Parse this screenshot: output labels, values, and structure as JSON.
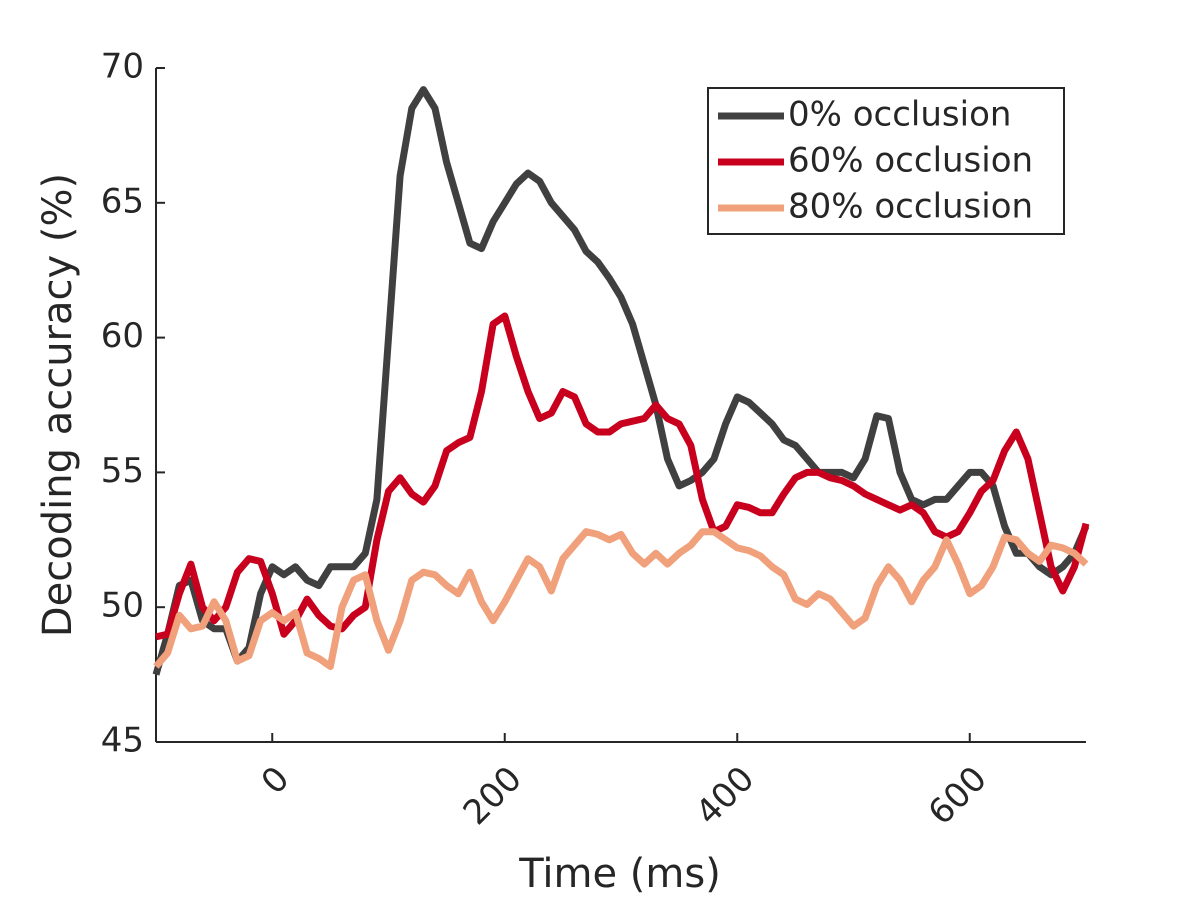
{
  "chart_data": {
    "type": "line",
    "xlabel": "Time (ms)",
    "ylabel": "Decoding accuracy (%)",
    "xlim": [
      -100,
      700
    ],
    "xticks": [
      0,
      200,
      400,
      600
    ],
    "ylim": [
      45,
      70
    ],
    "yticks": [
      45,
      50,
      55,
      60,
      65,
      70
    ],
    "legend": "upper right",
    "grid": false,
    "x": [
      -100,
      -90,
      -80,
      -70,
      -60,
      -50,
      -40,
      -30,
      -20,
      -10,
      0,
      10,
      20,
      30,
      40,
      50,
      60,
      70,
      80,
      90,
      100,
      110,
      120,
      130,
      140,
      150,
      160,
      170,
      180,
      190,
      200,
      210,
      220,
      230,
      240,
      250,
      260,
      270,
      280,
      290,
      300,
      310,
      320,
      330,
      340,
      350,
      360,
      370,
      380,
      390,
      400,
      410,
      420,
      430,
      440,
      450,
      460,
      470,
      480,
      490,
      500,
      510,
      520,
      530,
      540,
      550,
      560,
      570,
      580,
      590,
      600,
      610,
      620,
      630,
      640,
      650,
      660,
      670,
      680,
      690,
      700
    ],
    "series": [
      {
        "name": "0% occlusion",
        "color": "#404040",
        "values": [
          47.5,
          49,
          50.8,
          51,
          49.5,
          49.2,
          49.2,
          48,
          48.5,
          50.5,
          51.5,
          51.2,
          51.5,
          51,
          50.8,
          51.5,
          51.5,
          51.5,
          52,
          54,
          60,
          66,
          68.5,
          69.2,
          68.5,
          66.5,
          65,
          63.5,
          63.3,
          64.3,
          65,
          65.7,
          66.1,
          65.8,
          65,
          64.5,
          64,
          63.2,
          62.8,
          62.2,
          61.5,
          60.5,
          59,
          57.5,
          55.5,
          54.5,
          54.7,
          55,
          55.5,
          56.8,
          57.8,
          57.6,
          57.2,
          56.8,
          56.2,
          56,
          55.5,
          55,
          55,
          55,
          54.8,
          55.5,
          57.1,
          57,
          55,
          54,
          53.8,
          54,
          54,
          54.5,
          55,
          55,
          54.5,
          53,
          52,
          52,
          51.5,
          51.2,
          51.5,
          52,
          53
        ]
      },
      {
        "name": "60% occlusion",
        "color": "#c8001e",
        "values": [
          48.9,
          49,
          50.5,
          51.6,
          50,
          49.5,
          50,
          51.3,
          51.8,
          51.7,
          50.5,
          49,
          49.5,
          50.3,
          49.7,
          49.3,
          49.2,
          49.7,
          50,
          52.5,
          54.3,
          54.8,
          54.2,
          53.9,
          54.5,
          55.8,
          56.1,
          56.3,
          58,
          60.5,
          60.8,
          59.3,
          58,
          57,
          57.2,
          58,
          57.8,
          56.8,
          56.5,
          56.5,
          56.8,
          56.9,
          57,
          57.5,
          57,
          56.8,
          56,
          54,
          52.8,
          53,
          53.8,
          53.7,
          53.5,
          53.5,
          54.2,
          54.8,
          55,
          55,
          54.8,
          54.7,
          54.5,
          54.2,
          54,
          53.8,
          53.6,
          53.8,
          53.5,
          52.8,
          52.6,
          52.8,
          53.5,
          54.3,
          54.7,
          55.8,
          56.5,
          55.5,
          53.5,
          51.5,
          50.6,
          51.5,
          53.1
        ]
      },
      {
        "name": "80% occlusion",
        "color": "#f0a07a",
        "values": [
          47.8,
          48.3,
          49.7,
          49.2,
          49.3,
          50.2,
          49.5,
          48,
          48.2,
          49.5,
          49.8,
          49.5,
          49.8,
          48.3,
          48.1,
          47.8,
          50,
          51,
          51.2,
          49.5,
          48.4,
          49.5,
          51,
          51.3,
          51.2,
          50.8,
          50.5,
          51.3,
          50.2,
          49.5,
          50.2,
          51,
          51.8,
          51.5,
          50.6,
          51.8,
          52.3,
          52.8,
          52.7,
          52.5,
          52.7,
          52,
          51.6,
          52,
          51.6,
          52,
          52.3,
          52.8,
          52.8,
          52.5,
          52.2,
          52.1,
          51.9,
          51.5,
          51.2,
          50.3,
          50.1,
          50.5,
          50.3,
          49.8,
          49.3,
          49.6,
          50.8,
          51.5,
          51,
          50.2,
          51,
          51.5,
          52.5,
          51.6,
          50.5,
          50.8,
          51.5,
          52.6,
          52.5,
          52,
          51.7,
          52.3,
          52.2,
          52,
          51.6
        ]
      }
    ]
  }
}
